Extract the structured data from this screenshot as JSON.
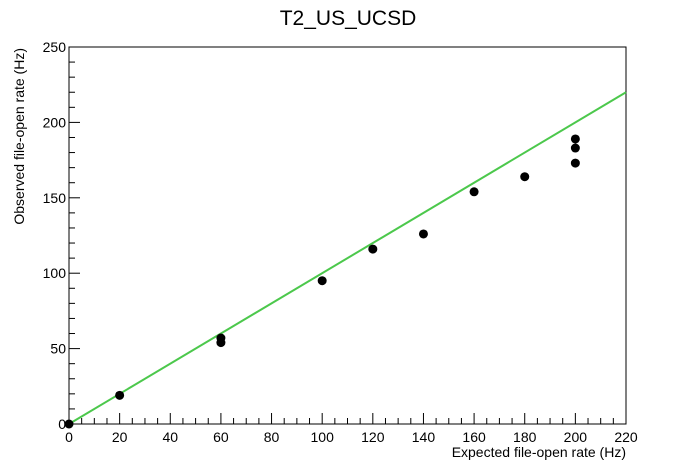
{
  "chart_data": {
    "type": "scatter",
    "title": "T2_US_UCSD",
    "xlabel": "Expected file-open rate (Hz)",
    "ylabel": "Observed file-open rate (Hz)",
    "xlim": [
      0,
      220
    ],
    "ylim": [
      0,
      250
    ],
    "grid": false,
    "x_ticks": [
      0,
      20,
      40,
      60,
      80,
      100,
      120,
      140,
      160,
      180,
      200,
      220
    ],
    "y_ticks": [
      0,
      50,
      100,
      150,
      200,
      250
    ],
    "series": [
      {
        "points": [
          {
            "x": 0,
            "y": 0
          },
          {
            "x": 20,
            "y": 19
          },
          {
            "x": 60,
            "y": 54
          },
          {
            "x": 60,
            "y": 57
          },
          {
            "x": 100,
            "y": 95
          },
          {
            "x": 120,
            "y": 116
          },
          {
            "x": 140,
            "y": 126
          },
          {
            "x": 160,
            "y": 154
          },
          {
            "x": 180,
            "y": 164
          },
          {
            "x": 200,
            "y": 173
          },
          {
            "x": 200,
            "y": 183
          },
          {
            "x": 200,
            "y": 189
          }
        ],
        "color": "#000000",
        "marker": "circle"
      }
    ],
    "reference_line": {
      "x": [
        0,
        220
      ],
      "y": [
        0,
        220
      ],
      "color": "#4cc84c"
    }
  }
}
